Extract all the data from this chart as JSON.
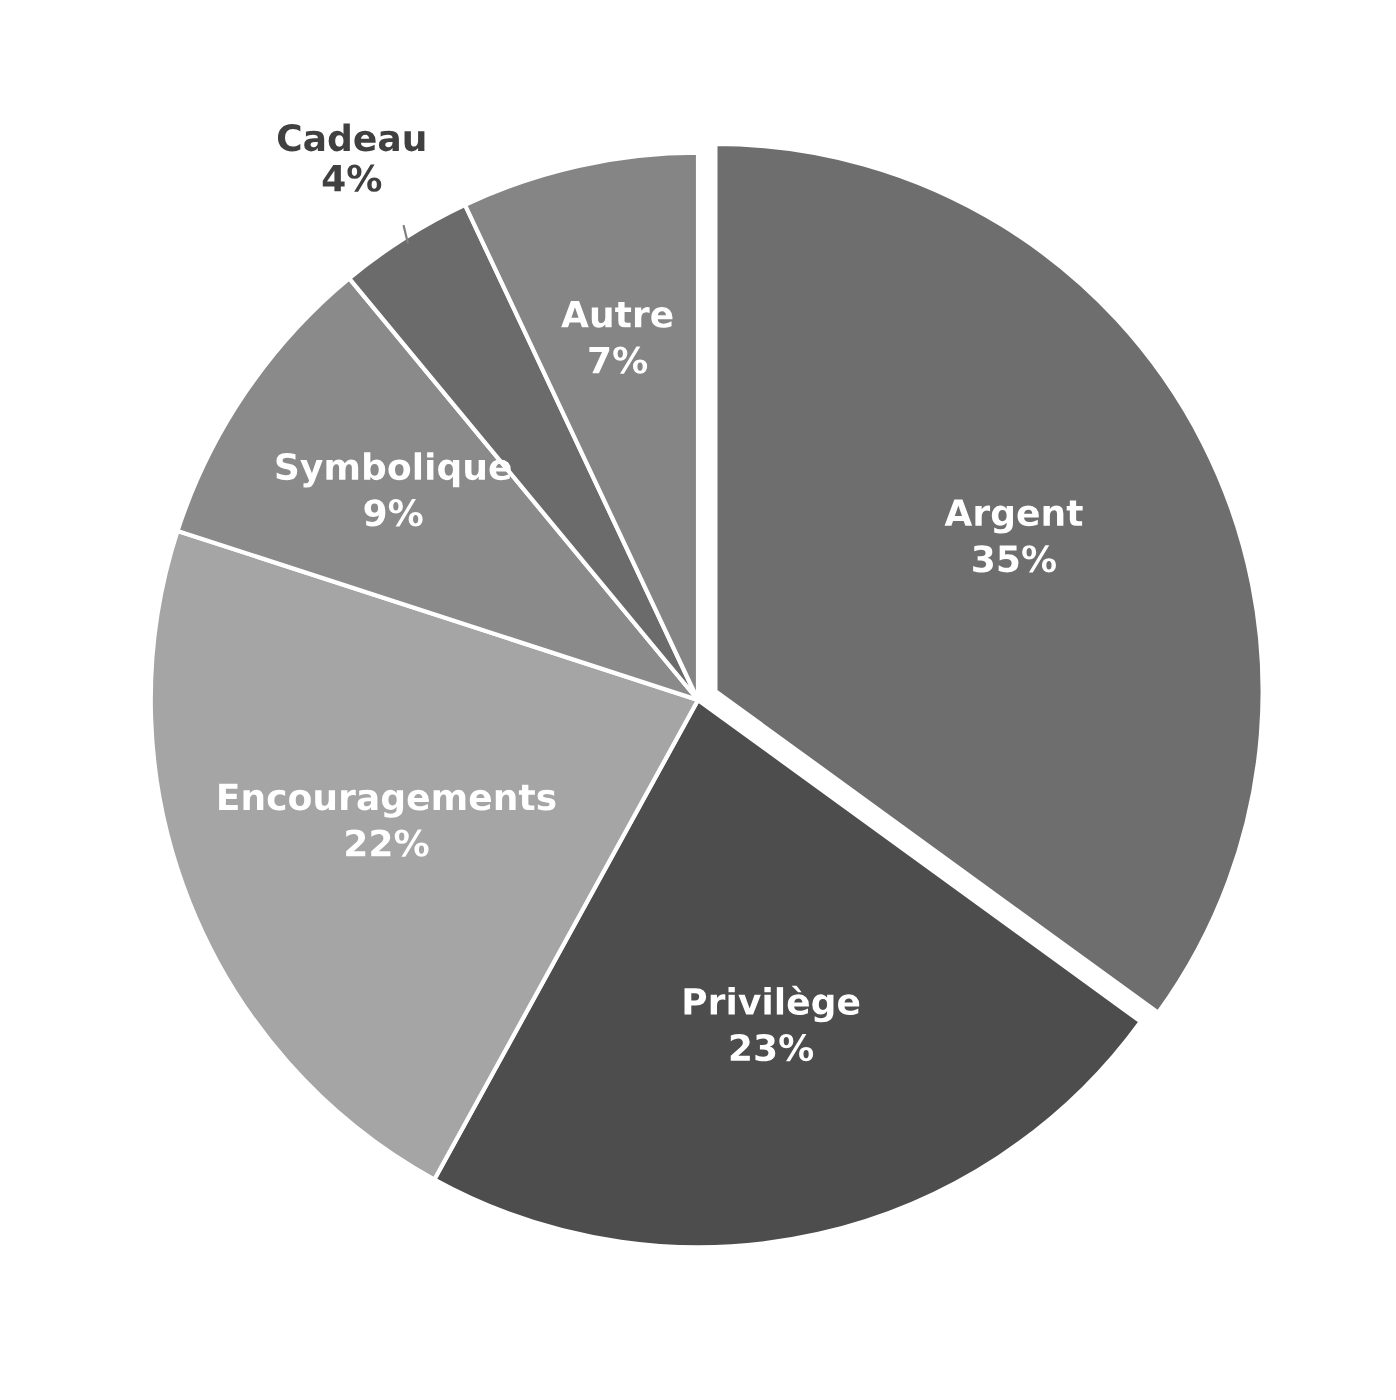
{
  "chart_data": {
    "type": "pie",
    "categories": [
      "Argent",
      "Privilège",
      "Encouragements",
      "Symbolique",
      "Cadeau",
      "Autre"
    ],
    "values": [
      35,
      23,
      22,
      9,
      4,
      7
    ],
    "value_labels": [
      "35%",
      "23%",
      "22%",
      "9%",
      "4%",
      "7%"
    ],
    "colors": [
      "#6e6e6e",
      "#4d4d4d",
      "#a5a5a5",
      "#8a8a8a",
      "#6b6b6b",
      "#858585"
    ],
    "legend": false
  }
}
